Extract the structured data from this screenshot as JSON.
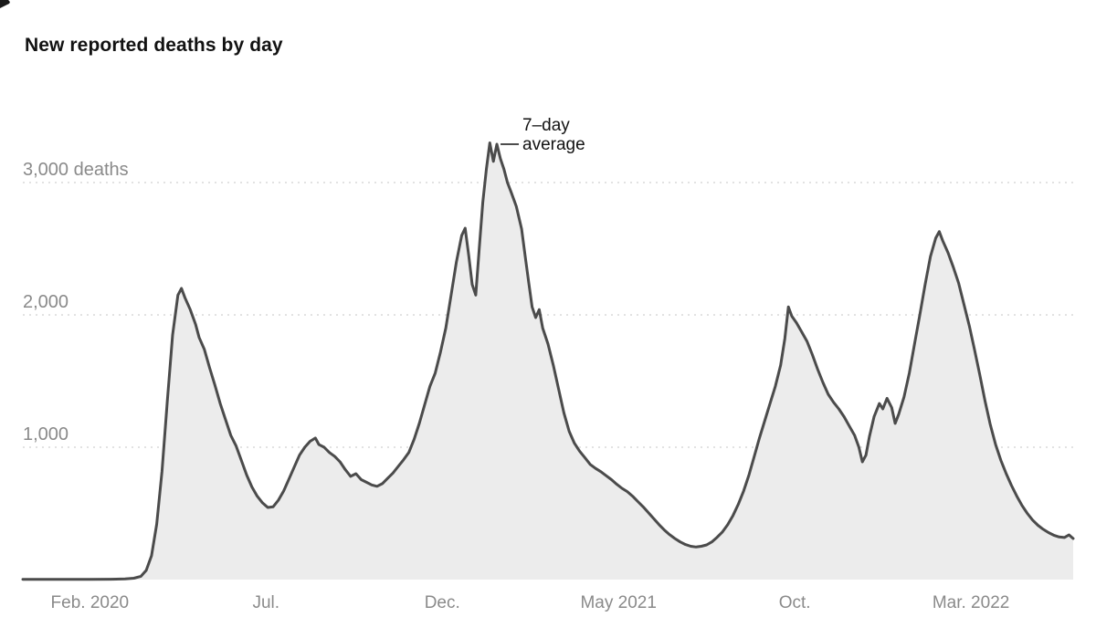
{
  "title": "New reported deaths by day",
  "annotation": {
    "line1": "7–day",
    "line2": "average"
  },
  "colors": {
    "title": "#121212",
    "axis_label": "#8a8a8a",
    "grid": "#d9d9d9",
    "line": "#4b4b4b",
    "area": "#ececec",
    "annotation": "#121212",
    "background": "#ffffff"
  },
  "chart_data": {
    "type": "area",
    "title": "New reported deaths by day",
    "xlabel": "",
    "ylabel": "deaths (7-day average)",
    "x_unit": "months since Feb 1, 2020",
    "xlim": [
      -1.9,
      27.9
    ],
    "ylim": [
      0,
      3500
    ],
    "grid": "dashed horizontal",
    "legend": "none",
    "x_ticks": [
      {
        "pos": 0,
        "label": "Feb. 2020"
      },
      {
        "pos": 5,
        "label": "Jul."
      },
      {
        "pos": 10,
        "label": "Dec."
      },
      {
        "pos": 15,
        "label": "May 2021"
      },
      {
        "pos": 20,
        "label": "Oct."
      },
      {
        "pos": 25,
        "label": "Mar. 2022"
      }
    ],
    "y_ticks": [
      {
        "value": 1000,
        "label": "1,000"
      },
      {
        "value": 2000,
        "label": "2,000"
      },
      {
        "value": 3000,
        "label": "3,000 deaths"
      }
    ],
    "annotation": {
      "text": "7–day average",
      "at": [
        11.55,
        3290
      ]
    },
    "series": [
      {
        "name": "7-day average",
        "points": [
          [
            -1.9,
            2
          ],
          [
            -1.0,
            2
          ],
          [
            0,
            2
          ],
          [
            0.6,
            3
          ],
          [
            1.0,
            5
          ],
          [
            1.25,
            10
          ],
          [
            1.45,
            25
          ],
          [
            1.6,
            70
          ],
          [
            1.75,
            180
          ],
          [
            1.9,
            420
          ],
          [
            2.05,
            820
          ],
          [
            2.2,
            1350
          ],
          [
            2.35,
            1850
          ],
          [
            2.5,
            2150
          ],
          [
            2.6,
            2200
          ],
          [
            2.7,
            2130
          ],
          [
            2.85,
            2040
          ],
          [
            3.0,
            1930
          ],
          [
            3.1,
            1830
          ],
          [
            3.25,
            1740
          ],
          [
            3.4,
            1600
          ],
          [
            3.55,
            1470
          ],
          [
            3.7,
            1330
          ],
          [
            3.85,
            1210
          ],
          [
            4.0,
            1090
          ],
          [
            4.15,
            1010
          ],
          [
            4.3,
            900
          ],
          [
            4.45,
            790
          ],
          [
            4.6,
            700
          ],
          [
            4.75,
            630
          ],
          [
            4.9,
            580
          ],
          [
            5.05,
            545
          ],
          [
            5.2,
            550
          ],
          [
            5.35,
            600
          ],
          [
            5.5,
            670
          ],
          [
            5.65,
            760
          ],
          [
            5.8,
            850
          ],
          [
            5.95,
            940
          ],
          [
            6.1,
            1000
          ],
          [
            6.25,
            1045
          ],
          [
            6.4,
            1070
          ],
          [
            6.5,
            1020
          ],
          [
            6.65,
            1000
          ],
          [
            6.8,
            960
          ],
          [
            6.95,
            930
          ],
          [
            7.1,
            890
          ],
          [
            7.25,
            830
          ],
          [
            7.4,
            780
          ],
          [
            7.55,
            800
          ],
          [
            7.7,
            755
          ],
          [
            7.85,
            735
          ],
          [
            8.0,
            715
          ],
          [
            8.15,
            705
          ],
          [
            8.3,
            725
          ],
          [
            8.45,
            765
          ],
          [
            8.6,
            805
          ],
          [
            8.75,
            855
          ],
          [
            8.9,
            905
          ],
          [
            9.05,
            960
          ],
          [
            9.2,
            1060
          ],
          [
            9.35,
            1180
          ],
          [
            9.5,
            1320
          ],
          [
            9.65,
            1460
          ],
          [
            9.8,
            1560
          ],
          [
            9.95,
            1720
          ],
          [
            10.1,
            1900
          ],
          [
            10.25,
            2150
          ],
          [
            10.4,
            2400
          ],
          [
            10.55,
            2600
          ],
          [
            10.65,
            2655
          ],
          [
            10.75,
            2450
          ],
          [
            10.85,
            2230
          ],
          [
            10.95,
            2150
          ],
          [
            11.05,
            2500
          ],
          [
            11.15,
            2850
          ],
          [
            11.25,
            3100
          ],
          [
            11.35,
            3300
          ],
          [
            11.45,
            3160
          ],
          [
            11.55,
            3290
          ],
          [
            11.65,
            3180
          ],
          [
            11.75,
            3100
          ],
          [
            11.85,
            3000
          ],
          [
            11.95,
            2930
          ],
          [
            12.1,
            2820
          ],
          [
            12.25,
            2650
          ],
          [
            12.35,
            2450
          ],
          [
            12.45,
            2250
          ],
          [
            12.55,
            2060
          ],
          [
            12.65,
            1980
          ],
          [
            12.75,
            2040
          ],
          [
            12.85,
            1900
          ],
          [
            13.0,
            1780
          ],
          [
            13.15,
            1620
          ],
          [
            13.3,
            1440
          ],
          [
            13.45,
            1260
          ],
          [
            13.6,
            1120
          ],
          [
            13.75,
            1030
          ],
          [
            13.9,
            970
          ],
          [
            14.05,
            920
          ],
          [
            14.2,
            870
          ],
          [
            14.35,
            840
          ],
          [
            14.5,
            815
          ],
          [
            14.65,
            785
          ],
          [
            14.8,
            755
          ],
          [
            14.95,
            720
          ],
          [
            15.1,
            690
          ],
          [
            15.25,
            665
          ],
          [
            15.4,
            630
          ],
          [
            15.55,
            590
          ],
          [
            15.7,
            550
          ],
          [
            15.85,
            505
          ],
          [
            16.0,
            460
          ],
          [
            16.15,
            415
          ],
          [
            16.3,
            375
          ],
          [
            16.45,
            340
          ],
          [
            16.6,
            310
          ],
          [
            16.75,
            285
          ],
          [
            16.9,
            265
          ],
          [
            17.05,
            252
          ],
          [
            17.2,
            246
          ],
          [
            17.35,
            252
          ],
          [
            17.5,
            262
          ],
          [
            17.65,
            285
          ],
          [
            17.8,
            320
          ],
          [
            17.95,
            360
          ],
          [
            18.1,
            415
          ],
          [
            18.25,
            485
          ],
          [
            18.4,
            570
          ],
          [
            18.55,
            670
          ],
          [
            18.7,
            790
          ],
          [
            18.85,
            930
          ],
          [
            19.0,
            1070
          ],
          [
            19.15,
            1200
          ],
          [
            19.3,
            1330
          ],
          [
            19.45,
            1460
          ],
          [
            19.6,
            1620
          ],
          [
            19.72,
            1820
          ],
          [
            19.82,
            2060
          ],
          [
            19.92,
            1990
          ],
          [
            20.05,
            1940
          ],
          [
            20.2,
            1870
          ],
          [
            20.35,
            1800
          ],
          [
            20.5,
            1700
          ],
          [
            20.65,
            1590
          ],
          [
            20.8,
            1490
          ],
          [
            20.95,
            1400
          ],
          [
            21.1,
            1340
          ],
          [
            21.25,
            1290
          ],
          [
            21.4,
            1230
          ],
          [
            21.55,
            1160
          ],
          [
            21.7,
            1090
          ],
          [
            21.82,
            1000
          ],
          [
            21.92,
            890
          ],
          [
            22.02,
            940
          ],
          [
            22.12,
            1080
          ],
          [
            22.25,
            1230
          ],
          [
            22.4,
            1330
          ],
          [
            22.5,
            1290
          ],
          [
            22.62,
            1370
          ],
          [
            22.75,
            1300
          ],
          [
            22.85,
            1180
          ],
          [
            22.95,
            1250
          ],
          [
            23.1,
            1380
          ],
          [
            23.25,
            1560
          ],
          [
            23.4,
            1780
          ],
          [
            23.55,
            2000
          ],
          [
            23.7,
            2230
          ],
          [
            23.85,
            2440
          ],
          [
            24.0,
            2580
          ],
          [
            24.1,
            2630
          ],
          [
            24.2,
            2560
          ],
          [
            24.35,
            2470
          ],
          [
            24.5,
            2360
          ],
          [
            24.65,
            2240
          ],
          [
            24.8,
            2080
          ],
          [
            24.95,
            1920
          ],
          [
            25.1,
            1740
          ],
          [
            25.25,
            1550
          ],
          [
            25.4,
            1350
          ],
          [
            25.55,
            1170
          ],
          [
            25.7,
            1020
          ],
          [
            25.85,
            900
          ],
          [
            26.0,
            800
          ],
          [
            26.15,
            710
          ],
          [
            26.3,
            630
          ],
          [
            26.45,
            560
          ],
          [
            26.6,
            500
          ],
          [
            26.75,
            450
          ],
          [
            26.9,
            410
          ],
          [
            27.05,
            380
          ],
          [
            27.2,
            355
          ],
          [
            27.35,
            335
          ],
          [
            27.5,
            322
          ],
          [
            27.65,
            318
          ],
          [
            27.78,
            338
          ],
          [
            27.9,
            310
          ]
        ]
      }
    ]
  }
}
